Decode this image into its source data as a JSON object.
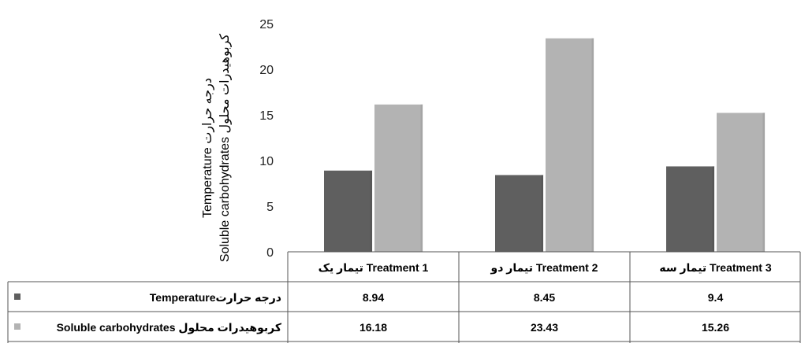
{
  "chart_data": {
    "type": "bar",
    "categories": [
      "تیمار یک Treatment 1",
      "تیمار دو Treatment 2",
      "تیمار سه Treatment 3"
    ],
    "series": [
      {
        "name": "Temperatureدرجه حرارت",
        "values": [
          8.94,
          8.45,
          9.4
        ],
        "color": "#5f5f5f"
      },
      {
        "name": "Soluble carbohydrates کربوهیدرات محلول",
        "values": [
          16.18,
          23.43,
          15.26
        ],
        "color": "#b3b3b3"
      }
    ],
    "data_table": [
      [
        "8.94",
        "8.45",
        "9.4"
      ],
      [
        "16.18",
        "23.43",
        "15.26"
      ]
    ],
    "ylabel_line1": "Temperature درجه حرارت",
    "ylabel_line2": "Soluble carbohydrates کربوهیدرات محلول",
    "ylim": [
      0,
      25
    ],
    "yticks": [
      0,
      5,
      10,
      15,
      20,
      25
    ],
    "grid": false,
    "legend": "data-table-rows"
  }
}
